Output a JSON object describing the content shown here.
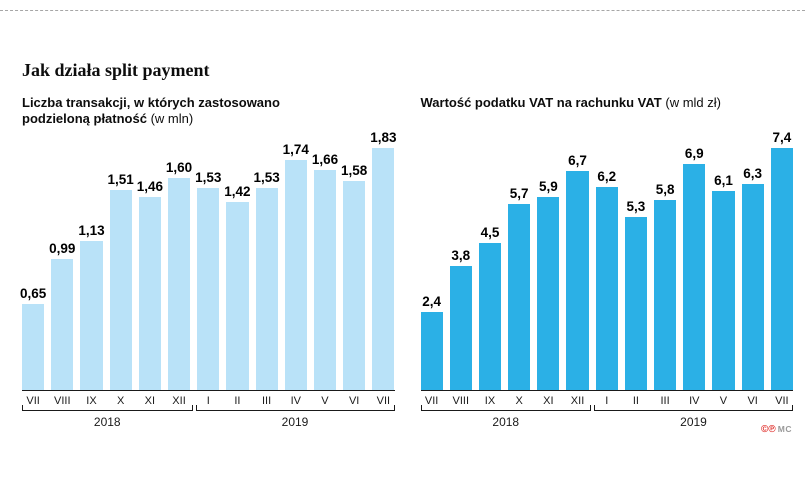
{
  "header": {
    "title": "Jak działa split payment"
  },
  "charts": [
    {
      "title_bold": "Liczba transakcji, w których zastosowano podzieloną płatność ",
      "title_note": "(w mln)"
    },
    {
      "title_bold": "Wartość podatku VAT na rachunku VAT ",
      "title_note": "(w mld zł)"
    }
  ],
  "chart_data": [
    {
      "type": "bar",
      "title": "Liczba transakcji, w których zastosowano podzieloną płatność (w mln)",
      "categories": [
        "VII",
        "VIII",
        "IX",
        "X",
        "XI",
        "XII",
        "I",
        "II",
        "III",
        "IV",
        "V",
        "VI",
        "VII"
      ],
      "values": [
        0.65,
        0.99,
        1.13,
        1.51,
        1.46,
        1.6,
        1.53,
        1.42,
        1.53,
        1.74,
        1.66,
        1.58,
        1.83
      ],
      "value_labels": [
        "0,65",
        "0,99",
        "1,13",
        "1,51",
        "1,46",
        "1,60",
        "1,53",
        "1,42",
        "1,53",
        "1,74",
        "1,66",
        "1,58",
        "1,83"
      ],
      "groups": [
        {
          "label": "2018",
          "count": 6
        },
        {
          "label": "2019",
          "count": 7
        }
      ],
      "bar_color": "#b9e2f8",
      "ylim": [
        0,
        1.83
      ],
      "legend": "none",
      "grid": "off"
    },
    {
      "type": "bar",
      "title": "Wartość podatku VAT na rachunku VAT (w mld zł)",
      "categories": [
        "VII",
        "VIII",
        "IX",
        "X",
        "XI",
        "XII",
        "I",
        "II",
        "III",
        "IV",
        "V",
        "VI",
        "VII"
      ],
      "values": [
        2.4,
        3.8,
        4.5,
        5.7,
        5.9,
        6.7,
        6.2,
        5.3,
        5.8,
        6.9,
        6.1,
        6.3,
        7.4
      ],
      "value_labels": [
        "2,4",
        "3,8",
        "4,5",
        "5,7",
        "5,9",
        "6,7",
        "6,2",
        "5,3",
        "5,8",
        "6,9",
        "6,1",
        "6,3",
        "7,4"
      ],
      "groups": [
        {
          "label": "2018",
          "count": 6
        },
        {
          "label": "2019",
          "count": 7
        }
      ],
      "bar_color": "#2bb0e6",
      "ylim": [
        0,
        7.4
      ],
      "legend": "none",
      "grid": "off"
    }
  ],
  "footer": {
    "marks": "©℗",
    "source": "MC"
  }
}
